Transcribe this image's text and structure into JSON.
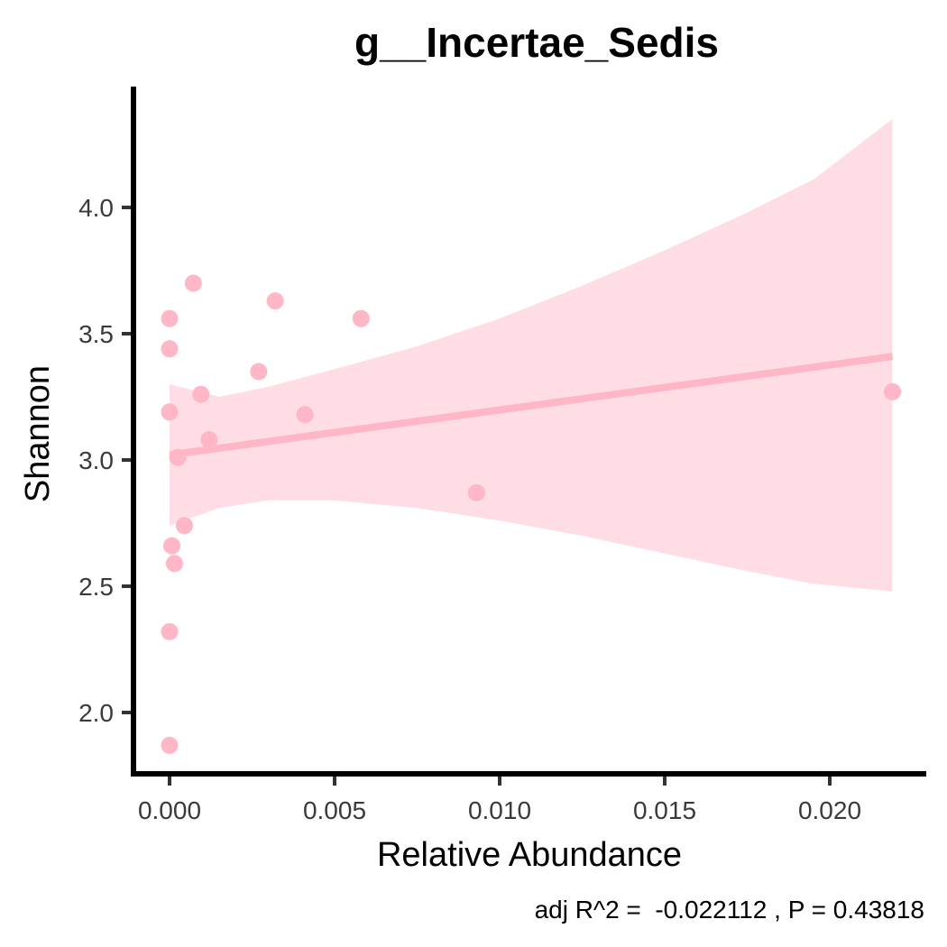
{
  "chart_data": {
    "type": "scatter",
    "title": "g__Incertae_Sedis",
    "xlabel": "Relative Abundance",
    "ylabel": "Shannon",
    "caption": "adj R^2 =  -0.022112 , P = 0.43818",
    "xlim": [
      -0.001,
      0.0229
    ],
    "ylim": [
      1.75,
      4.44
    ],
    "x_ticks": [
      0.0,
      0.005,
      0.01,
      0.015,
      0.02
    ],
    "x_tick_labels": [
      "0.000",
      "0.005",
      "0.010",
      "0.015",
      "0.020"
    ],
    "y_ticks": [
      2.0,
      2.5,
      3.0,
      3.5,
      4.0
    ],
    "y_tick_labels": [
      "2.0",
      "2.5",
      "3.0",
      "3.5",
      "4.0"
    ],
    "grid": false,
    "colors": {
      "points": "#ffb6c6",
      "fit_line": "#ffb6c6",
      "ribbon": "#ffdde4",
      "axis": "#000000"
    },
    "points": [
      {
        "x": 0.0,
        "y": 3.56
      },
      {
        "x": 0.0,
        "y": 3.44
      },
      {
        "x": 0.0,
        "y": 3.19
      },
      {
        "x": 0.0,
        "y": 2.32
      },
      {
        "x": 0.0,
        "y": 1.87
      },
      {
        "x": 7e-05,
        "y": 2.66
      },
      {
        "x": 0.00015,
        "y": 2.59
      },
      {
        "x": 0.00025,
        "y": 3.01
      },
      {
        "x": 0.00045,
        "y": 2.74
      },
      {
        "x": 0.00072,
        "y": 3.7
      },
      {
        "x": 0.00095,
        "y": 3.26
      },
      {
        "x": 0.0012,
        "y": 3.08
      },
      {
        "x": 0.0027,
        "y": 3.35
      },
      {
        "x": 0.0032,
        "y": 3.63
      },
      {
        "x": 0.0041,
        "y": 3.18
      },
      {
        "x": 0.0058,
        "y": 3.56
      },
      {
        "x": 0.0093,
        "y": 2.87
      },
      {
        "x": 0.0219,
        "y": 3.27
      }
    ],
    "fit": {
      "x": [
        0.0,
        0.0219
      ],
      "y": [
        3.02,
        3.41
      ]
    },
    "confidence_band": {
      "x": [
        0.0,
        0.0015,
        0.003,
        0.005,
        0.0075,
        0.01,
        0.0125,
        0.015,
        0.0175,
        0.0195,
        0.0219
      ],
      "upper": [
        3.3,
        3.25,
        3.29,
        3.36,
        3.45,
        3.56,
        3.69,
        3.83,
        3.98,
        4.11,
        4.35
      ],
      "lower": [
        2.74,
        2.81,
        2.84,
        2.84,
        2.81,
        2.76,
        2.7,
        2.63,
        2.56,
        2.51,
        2.48
      ]
    }
  }
}
